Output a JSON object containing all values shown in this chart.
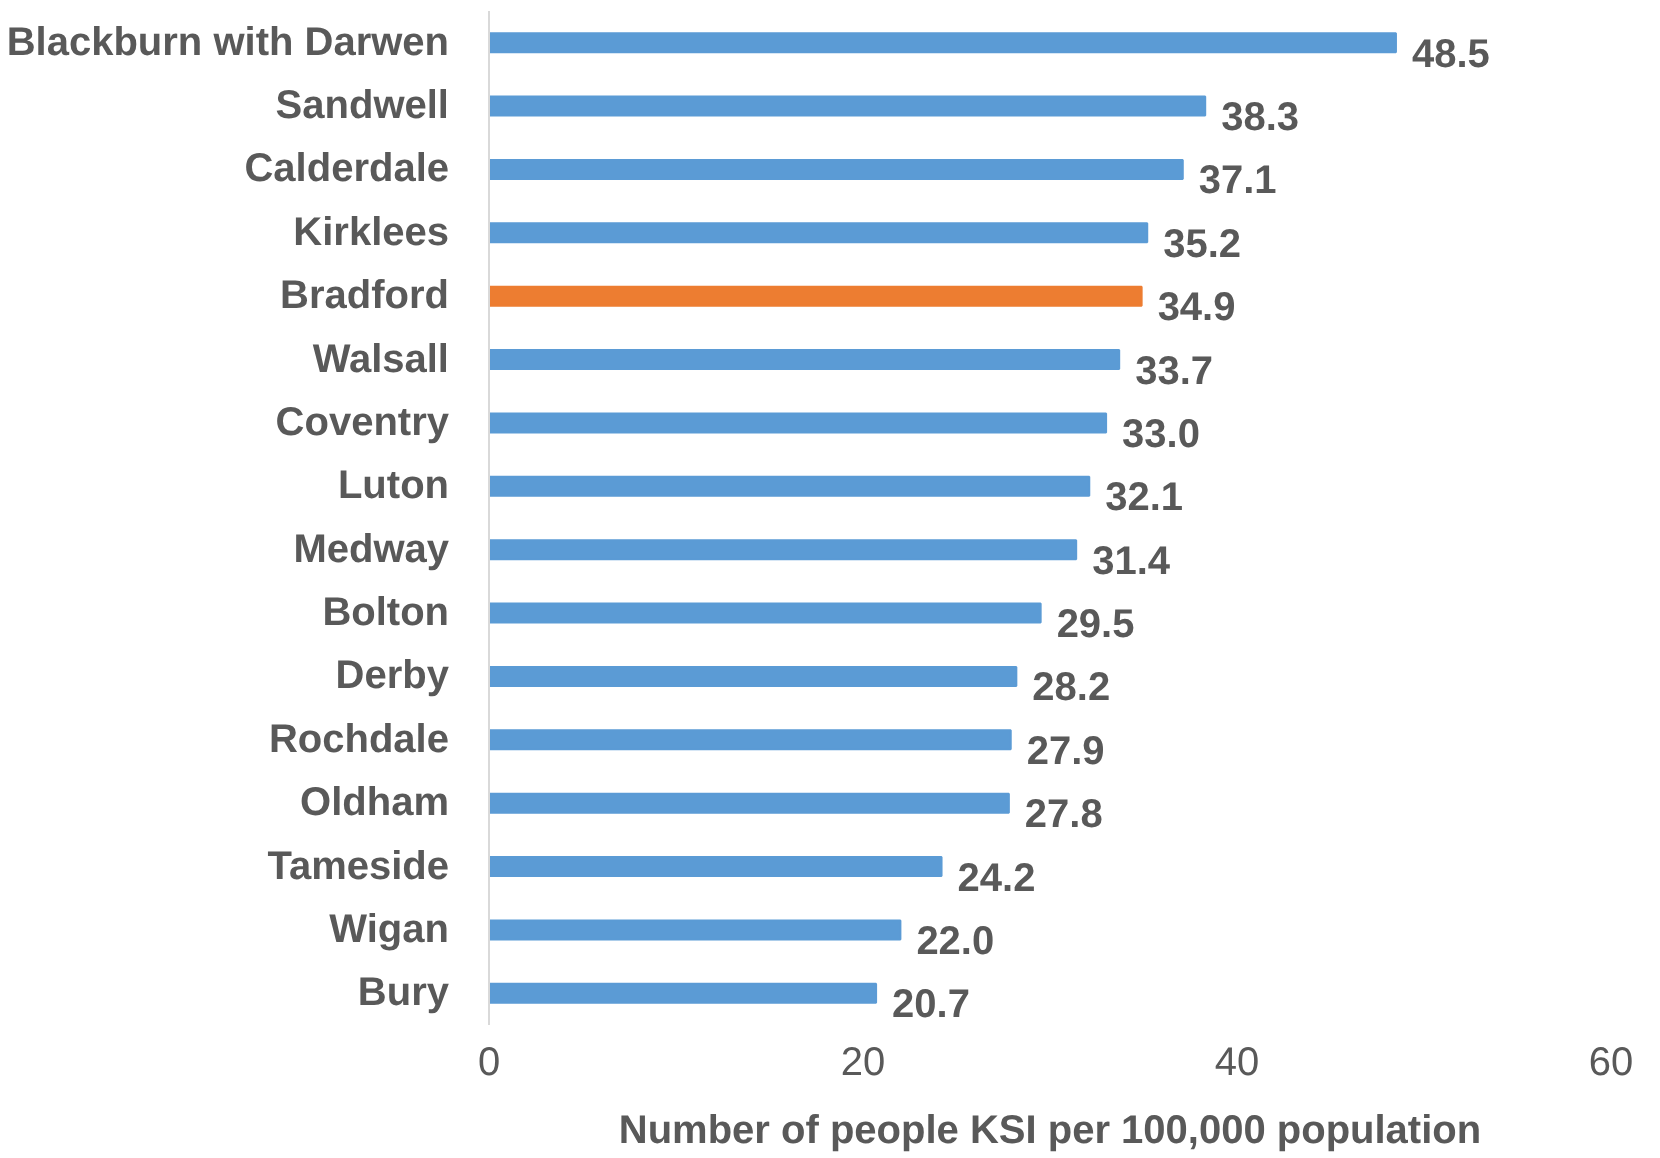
{
  "chart_data": {
    "type": "bar",
    "orientation": "horizontal",
    "xlabel": "Number of people KSI per 100,000 population",
    "categories": [
      "Blackburn with Darwen",
      "Sandwell",
      "Calderdale",
      "Kirklees",
      "Bradford",
      "Walsall",
      "Coventry",
      "Luton",
      "Medway",
      "Bolton",
      "Derby",
      "Rochdale",
      "Oldham",
      "Tameside",
      "Wigan",
      "Bury"
    ],
    "values": [
      48.5,
      38.3,
      37.1,
      35.2,
      34.9,
      33.7,
      33.0,
      32.1,
      31.4,
      29.5,
      28.2,
      27.9,
      27.8,
      24.2,
      22.0,
      20.7
    ],
    "value_labels": [
      "48.5",
      "38.3",
      "37.1",
      "35.2",
      "34.9",
      "33.7",
      "33.0",
      "32.1",
      "31.4",
      "29.5",
      "28.2",
      "27.9",
      "27.8",
      "24.2",
      "22.0",
      "20.7"
    ],
    "colors": [
      "#5b9bd5",
      "#5b9bd5",
      "#5b9bd5",
      "#5b9bd5",
      "#ed7d31",
      "#5b9bd5",
      "#5b9bd5",
      "#5b9bd5",
      "#5b9bd5",
      "#5b9bd5",
      "#5b9bd5",
      "#5b9bd5",
      "#5b9bd5",
      "#5b9bd5",
      "#5b9bd5",
      "#5b9bd5"
    ],
    "xlim": [
      0,
      60
    ],
    "xticks": [
      0,
      20,
      40,
      60
    ],
    "grid": false
  }
}
